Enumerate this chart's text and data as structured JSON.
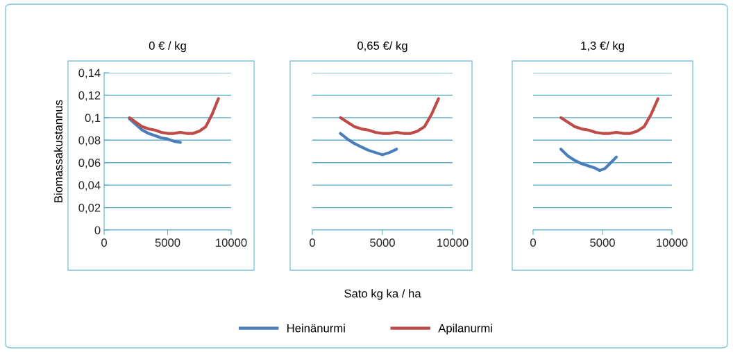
{
  "chart_data": [
    {
      "type": "line",
      "title": "0 € / kg",
      "ylabel": "Biomassakustannus",
      "xlim": [
        0,
        10000
      ],
      "xticks": [
        0,
        5000,
        10000
      ],
      "ylim": [
        0,
        0.14
      ],
      "yticks": [
        {
          "value": 0,
          "label": "0"
        },
        {
          "value": 0.02,
          "label": "0,02"
        },
        {
          "value": 0.04,
          "label": "0,04"
        },
        {
          "value": 0.06,
          "label": "0,06"
        },
        {
          "value": 0.08,
          "label": "0,08"
        },
        {
          "value": 0.1,
          "label": "0,1"
        },
        {
          "value": 0.12,
          "label": "0,12"
        },
        {
          "value": 0.14,
          "label": "0,14"
        }
      ],
      "grid": "y",
      "line_style": "solid",
      "legend": "bottom",
      "series": [
        {
          "name": "Heinänurmi",
          "color": "#4a7ebb",
          "x": [
            2000,
            2500,
            3000,
            3500,
            4000,
            4500,
            5000,
            5500,
            6000
          ],
          "values": [
            0.099,
            0.094,
            0.089,
            0.086,
            0.084,
            0.082,
            0.081,
            0.079,
            0.078
          ]
        },
        {
          "name": "Apilanurmi",
          "color": "#be4b48",
          "x": [
            2000,
            2500,
            3000,
            3500,
            4000,
            4500,
            5000,
            5500,
            6000,
            6500,
            7000,
            7500,
            8000,
            8500,
            9000
          ],
          "values": [
            0.1,
            0.096,
            0.092,
            0.09,
            0.089,
            0.087,
            0.086,
            0.086,
            0.087,
            0.086,
            0.086,
            0.088,
            0.092,
            0.103,
            0.117
          ]
        }
      ]
    },
    {
      "type": "line",
      "title": "0,65 €/ kg",
      "xlabel": "Sato kg ka / ha",
      "xlim": [
        0,
        10000
      ],
      "xticks": [
        0,
        5000,
        10000
      ],
      "ylim": [
        0,
        0.14
      ],
      "yticks": [
        0,
        0.02,
        0.04,
        0.06,
        0.08,
        0.1,
        0.12,
        0.14
      ],
      "tick_labels": "x",
      "grid": "y",
      "line_style": "solid",
      "series": [
        {
          "color": "#4a7ebb",
          "x": [
            2000,
            2500,
            3000,
            3500,
            4000,
            4500,
            5000,
            5500,
            6000
          ],
          "values": [
            0.086,
            0.081,
            0.077,
            0.074,
            0.071,
            0.069,
            0.067,
            0.069,
            0.072
          ]
        },
        {
          "color": "#be4b48",
          "x": [
            2000,
            2500,
            3000,
            3500,
            4000,
            4500,
            5000,
            5500,
            6000,
            6500,
            7000,
            7500,
            8000,
            8500,
            9000
          ],
          "values": [
            0.1,
            0.096,
            0.092,
            0.09,
            0.089,
            0.087,
            0.086,
            0.086,
            0.087,
            0.086,
            0.086,
            0.088,
            0.092,
            0.103,
            0.117
          ]
        }
      ]
    },
    {
      "type": "line",
      "title": "1,3 €/ kg",
      "xlim": [
        0,
        10000
      ],
      "xticks": [
        0,
        5000,
        10000
      ],
      "ylim": [
        0,
        0.14
      ],
      "yticks": [
        0,
        0.02,
        0.04,
        0.06,
        0.08,
        0.1,
        0.12,
        0.14
      ],
      "tick_labels": "x",
      "grid": "y",
      "line_style": "solid",
      "series": [
        {
          "color": "#4a7ebb",
          "x": [
            2000,
            2500,
            3000,
            3500,
            4000,
            4500,
            4800,
            5200,
            5600,
            6000
          ],
          "values": [
            0.072,
            0.066,
            0.062,
            0.059,
            0.057,
            0.055,
            0.053,
            0.055,
            0.06,
            0.065
          ]
        },
        {
          "color": "#be4b48",
          "x": [
            2000,
            2500,
            3000,
            3500,
            4000,
            4500,
            5000,
            5500,
            6000,
            6500,
            7000,
            7500,
            8000,
            8500,
            9000
          ],
          "values": [
            0.1,
            0.096,
            0.092,
            0.09,
            0.089,
            0.087,
            0.086,
            0.086,
            0.087,
            0.086,
            0.086,
            0.088,
            0.092,
            0.103,
            0.117
          ]
        }
      ]
    }
  ]
}
